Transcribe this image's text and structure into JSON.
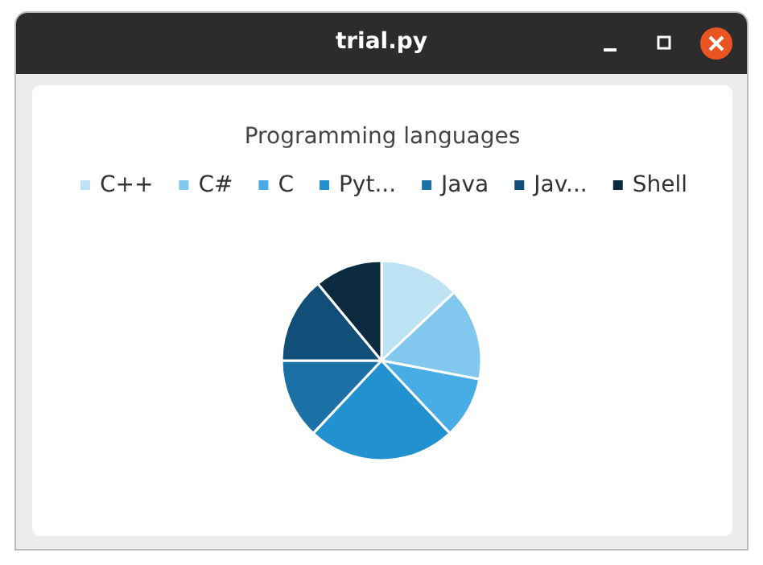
{
  "chart_data": {
    "type": "pie",
    "title": "Programming languages",
    "categories": [
      "C++",
      "C#",
      "C",
      "Pyt...",
      "Java",
      "Jav...",
      "Shell"
    ],
    "values": [
      13,
      15,
      10,
      24,
      13,
      14,
      11
    ],
    "colors": [
      "#bde2f4",
      "#82c8ee",
      "#49ade5",
      "#2291cf",
      "#1b70a5",
      "#124f78",
      "#0b2a3f"
    ],
    "legend": "top",
    "annotations": [
      "trial.py"
    ]
  }
}
